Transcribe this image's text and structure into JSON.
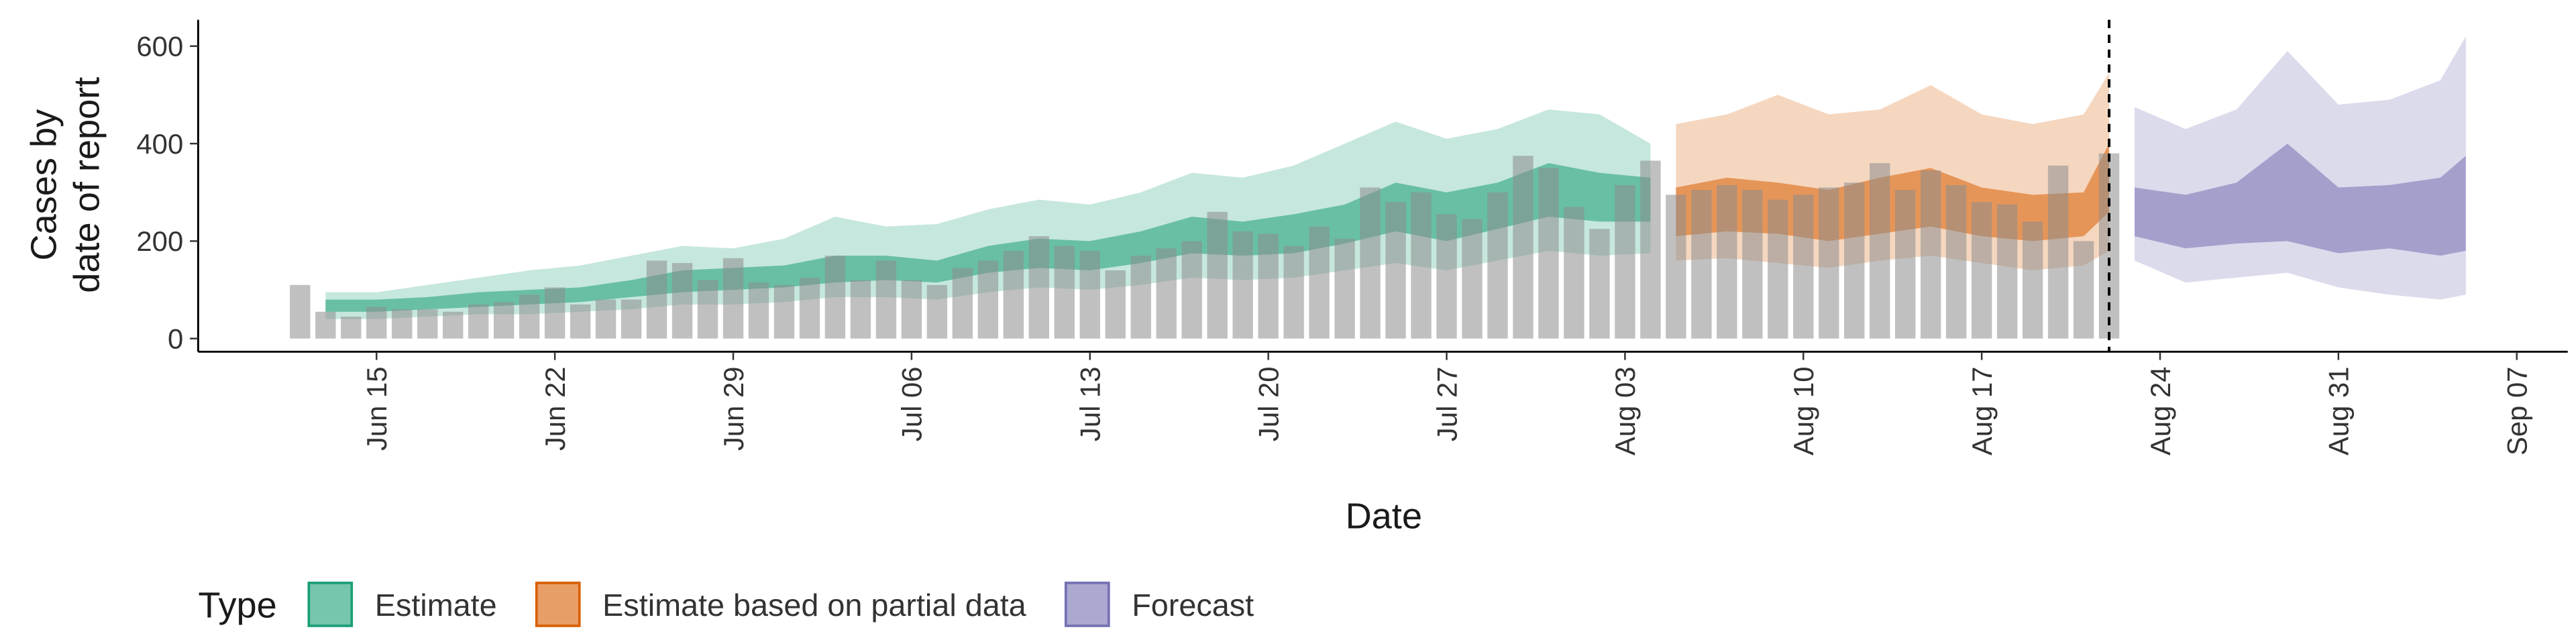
{
  "chart_data": {
    "type": "band-bar",
    "xlabel": "Date",
    "ylabel": [
      "Cases by",
      "date of report"
    ],
    "legend_title": "Type",
    "xlim": [
      "Jun 08",
      "Sep 09"
    ],
    "xticks": [
      "Jun 15",
      "Jun 22",
      "Jun 29",
      "Jul 06",
      "Jul 13",
      "Jul 20",
      "Jul 27",
      "Aug 03",
      "Aug 10",
      "Aug 17",
      "Aug 24",
      "Aug 31",
      "Sep 07"
    ],
    "ylim": [
      -27,
      654
    ],
    "yticks": [
      0,
      200,
      400,
      600
    ],
    "vline": "Aug 22",
    "bars": {
      "color": "#8c8c8c",
      "start": "Jun 12",
      "values": [
        110,
        55,
        45,
        65,
        60,
        60,
        55,
        70,
        75,
        90,
        105,
        70,
        80,
        80,
        160,
        155,
        120,
        165,
        115,
        110,
        125,
        170,
        120,
        160,
        120,
        110,
        145,
        160,
        180,
        210,
        190,
        180,
        140,
        170,
        185,
        200,
        260,
        220,
        215,
        190,
        230,
        205,
        310,
        280,
        300,
        255,
        245,
        300,
        375,
        350,
        270,
        225,
        315,
        365,
        295,
        305,
        315,
        305,
        285,
        295,
        310,
        320,
        360,
        305,
        345,
        315,
        280,
        275,
        240,
        355,
        200,
        380
      ]
    },
    "series": [
      {
        "name": "Estimate",
        "color": "#1b9e77",
        "x": [
          "Jun 13",
          "Jun 15",
          "Jun 17",
          "Jun 19",
          "Jun 21",
          "Jun 23",
          "Jun 25",
          "Jun 27",
          "Jun 29",
          "Jul 01",
          "Jul 03",
          "Jul 05",
          "Jul 07",
          "Jul 09",
          "Jul 11",
          "Jul 13",
          "Jul 15",
          "Jul 17",
          "Jul 19",
          "Jul 21",
          "Jul 23",
          "Jul 25",
          "Jul 27",
          "Jul 29",
          "Jul 31",
          "Aug 02",
          "Aug 04"
        ],
        "lower90": [
          40,
          40,
          45,
          50,
          50,
          55,
          60,
          70,
          70,
          75,
          85,
          85,
          80,
          95,
          105,
          100,
          110,
          125,
          120,
          125,
          140,
          155,
          140,
          160,
          180,
          170,
          175
        ],
        "lower50": [
          55,
          55,
          60,
          65,
          70,
          75,
          85,
          95,
          100,
          105,
          115,
          120,
          115,
          135,
          145,
          140,
          155,
          175,
          170,
          175,
          195,
          220,
          200,
          225,
          250,
          240,
          240
        ],
        "upper50": [
          80,
          80,
          85,
          95,
          100,
          105,
          120,
          140,
          145,
          150,
          170,
          170,
          160,
          190,
          205,
          200,
          220,
          250,
          240,
          255,
          275,
          320,
          300,
          320,
          360,
          340,
          330
        ],
        "upper90": [
          95,
          95,
          110,
          125,
          140,
          150,
          170,
          190,
          185,
          205,
          250,
          230,
          235,
          265,
          285,
          275,
          300,
          340,
          330,
          355,
          400,
          445,
          410,
          430,
          470,
          460,
          400
        ]
      },
      {
        "name": "Estimate based on partial data",
        "color": "#d95f02",
        "x": [
          "Aug 05",
          "Aug 07",
          "Aug 09",
          "Aug 11",
          "Aug 13",
          "Aug 15",
          "Aug 17",
          "Aug 19",
          "Aug 21",
          "Aug 22"
        ],
        "lower90": [
          160,
          165,
          155,
          145,
          160,
          170,
          155,
          140,
          150,
          180
        ],
        "lower50": [
          210,
          220,
          215,
          200,
          215,
          230,
          210,
          200,
          210,
          260
        ],
        "upper50": [
          310,
          330,
          320,
          305,
          330,
          350,
          310,
          295,
          300,
          400
        ],
        "upper90": [
          440,
          460,
          500,
          460,
          470,
          520,
          460,
          440,
          460,
          545
        ]
      },
      {
        "name": "Forecast",
        "color": "#7570b3",
        "x": [
          "Aug 23",
          "Aug 25",
          "Aug 27",
          "Aug 29",
          "Aug 31",
          "Sep 02",
          "Sep 04",
          "Sep 05"
        ],
        "lower90": [
          160,
          115,
          125,
          135,
          105,
          90,
          80,
          90
        ],
        "lower50": [
          210,
          185,
          195,
          200,
          175,
          185,
          170,
          180
        ],
        "upper50": [
          310,
          295,
          320,
          400,
          310,
          315,
          330,
          375
        ],
        "upper90": [
          475,
          430,
          470,
          590,
          480,
          490,
          530,
          620
        ]
      }
    ]
  }
}
